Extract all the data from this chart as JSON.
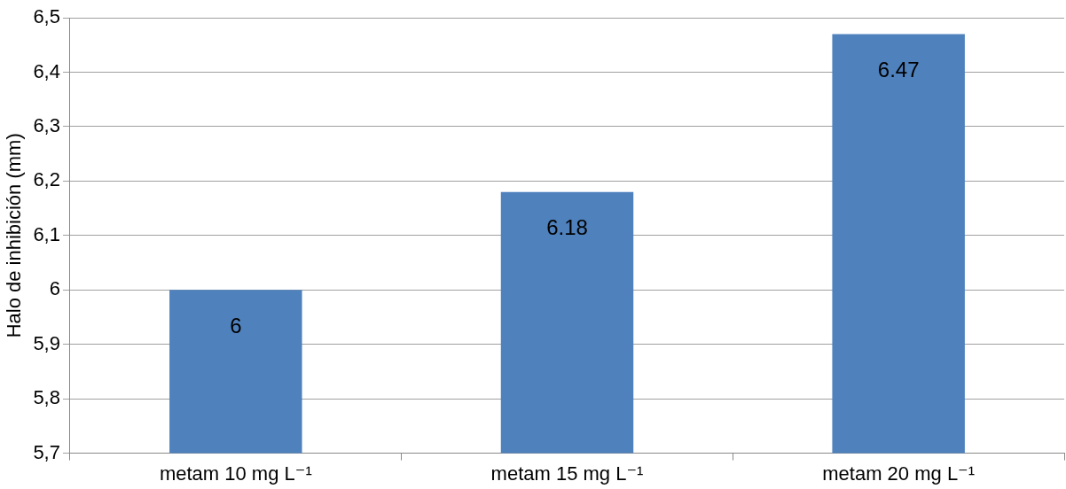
{
  "chart_data": {
    "type": "bar",
    "ylabel": "Halo de inhibición (mm)",
    "categories": [
      "metam 10 mg L⁻¹",
      "metam 15 mg L⁻¹",
      "metam 20 mg L⁻¹"
    ],
    "values": [
      6,
      6.18,
      6.47
    ],
    "color": "#4f81bd",
    "ylim": [
      5.7,
      6.5
    ],
    "yticks": [
      {
        "value": 5.7,
        "label": "5,7"
      },
      {
        "value": 5.8,
        "label": "5,8"
      },
      {
        "value": 5.9,
        "label": "5,9"
      },
      {
        "value": 6,
        "label": "6"
      },
      {
        "value": 6.1,
        "label": "6,1"
      },
      {
        "value": 6.2,
        "label": "6,2"
      },
      {
        "value": 6.3,
        "label": "6,3"
      },
      {
        "value": 6.4,
        "label": "6,4"
      },
      {
        "value": 6.5,
        "label": "6,5"
      }
    ],
    "grid": "y",
    "legend": false,
    "data_labels": true
  }
}
